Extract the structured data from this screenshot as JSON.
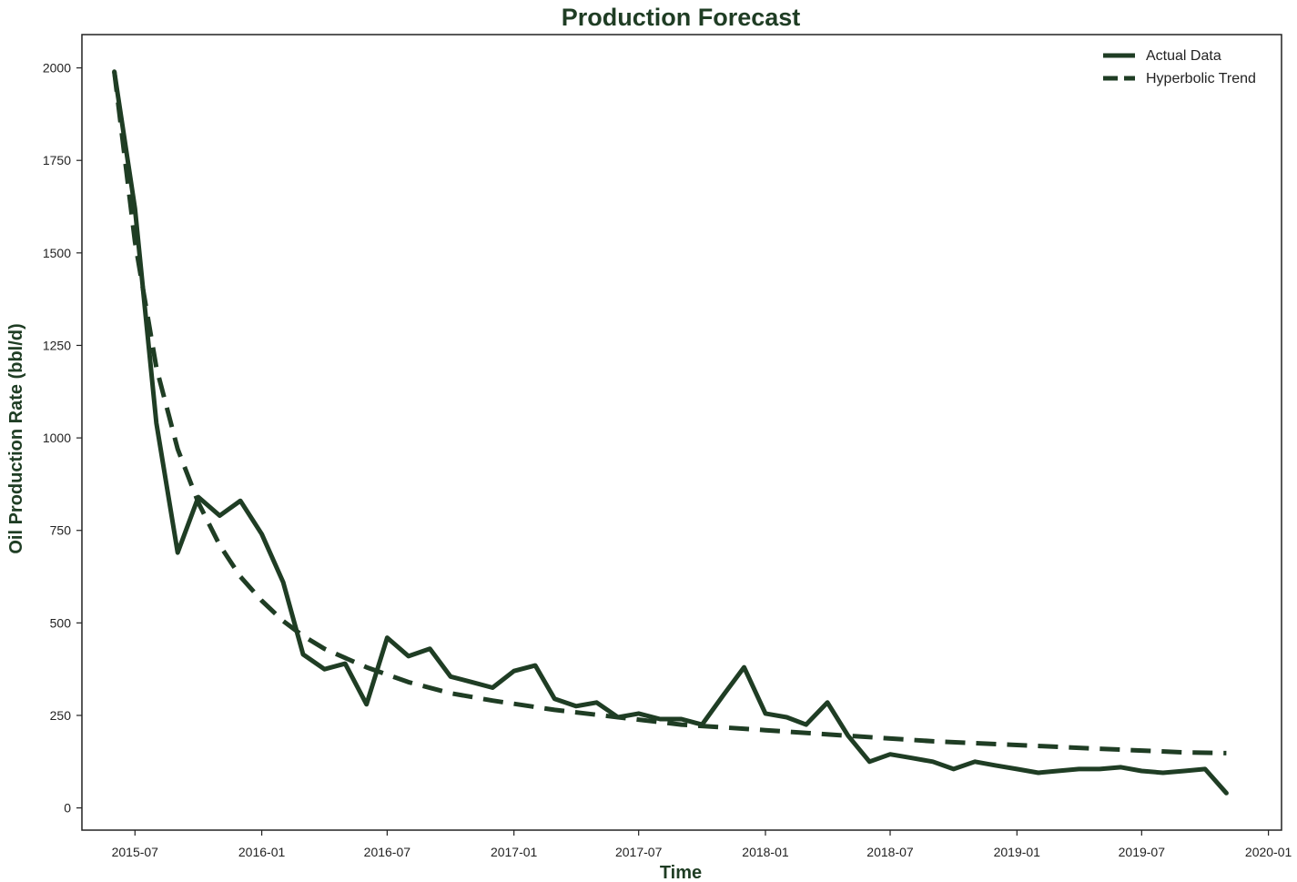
{
  "chart_data": {
    "type": "line",
    "title": "Production Forecast",
    "xlabel": "Time",
    "ylabel": "Oil Production Rate (bbl/d)",
    "x_tick_labels": [
      "2015-07",
      "2016-01",
      "2016-07",
      "2017-01",
      "2017-07",
      "2018-01",
      "2018-07",
      "2019-01",
      "2019-07",
      "2020-01"
    ],
    "y_ticks": [
      0,
      250,
      500,
      750,
      1000,
      1250,
      1500,
      1750,
      2000
    ],
    "xlim": [
      "2015-04-15",
      "2020-01-20"
    ],
    "ylim": [
      -60,
      2090
    ],
    "legend_position": "top-right",
    "grid": false,
    "colors": {
      "line": "#1f3d24",
      "text": "#222222",
      "title": "#1f3d24"
    },
    "series": [
      {
        "name": "Actual Data",
        "style": "solid",
        "x": [
          "2015-06-01",
          "2015-07-01",
          "2015-08-01",
          "2015-09-01",
          "2015-10-01",
          "2015-11-01",
          "2015-12-01",
          "2016-01-01",
          "2016-02-01",
          "2016-03-01",
          "2016-04-01",
          "2016-05-01",
          "2016-06-01",
          "2016-07-01",
          "2016-08-01",
          "2016-09-01",
          "2016-10-01",
          "2016-11-01",
          "2016-12-01",
          "2017-01-01",
          "2017-02-01",
          "2017-03-01",
          "2017-04-01",
          "2017-05-01",
          "2017-06-01",
          "2017-07-01",
          "2017-08-01",
          "2017-09-01",
          "2017-10-01",
          "2017-11-01",
          "2017-12-01",
          "2018-01-01",
          "2018-02-01",
          "2018-03-01",
          "2018-04-01",
          "2018-05-01",
          "2018-06-01",
          "2018-07-01",
          "2018-08-01",
          "2018-09-01",
          "2018-10-01",
          "2018-11-01",
          "2018-12-01",
          "2019-01-01",
          "2019-02-01",
          "2019-03-01",
          "2019-04-01",
          "2019-05-01",
          "2019-06-01",
          "2019-07-01",
          "2019-08-01",
          "2019-09-01",
          "2019-10-01",
          "2019-11-01"
        ],
        "values": [
          1990,
          1620,
          1040,
          690,
          840,
          790,
          830,
          740,
          610,
          415,
          375,
          390,
          280,
          460,
          410,
          430,
          355,
          340,
          325,
          370,
          385,
          295,
          275,
          285,
          245,
          255,
          240,
          240,
          225,
          305,
          380,
          255,
          245,
          225,
          285,
          195,
          125,
          145,
          135,
          125,
          105,
          125,
          115,
          105,
          95,
          100,
          105,
          105,
          110,
          100,
          95,
          100,
          105,
          40
        ]
      },
      {
        "name": "Hyperbolic Trend",
        "style": "dashed",
        "x": [
          "2015-06-01",
          "2015-07-01",
          "2015-08-01",
          "2015-09-01",
          "2015-10-01",
          "2015-11-01",
          "2015-12-01",
          "2016-01-01",
          "2016-02-01",
          "2016-03-01",
          "2016-04-01",
          "2016-06-01",
          "2016-08-01",
          "2016-10-01",
          "2016-12-01",
          "2017-03-01",
          "2017-06-01",
          "2017-09-01",
          "2018-01-01",
          "2018-05-01",
          "2018-09-01",
          "2019-01-01",
          "2019-05-01",
          "2019-09-01",
          "2019-11-01"
        ],
        "values": [
          1990,
          1530,
          1190,
          970,
          825,
          710,
          625,
          560,
          505,
          465,
          430,
          380,
          340,
          310,
          290,
          265,
          245,
          225,
          210,
          195,
          180,
          170,
          160,
          150,
          148
        ]
      }
    ]
  }
}
